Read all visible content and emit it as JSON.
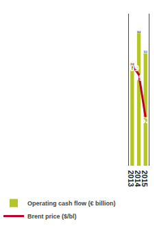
{
  "chart_data": {
    "type": "bar",
    "categories": [
      "2013",
      "2014",
      "2015"
    ],
    "series": [
      {
        "name": "Operating cash flow (€ billion)",
        "type": "bar",
        "color": "#b5c427",
        "values": [
          10.9,
          14.4,
          12.2
        ]
      },
      {
        "name": "Brent price ($/bl)",
        "type": "line",
        "color": "#be0027",
        "values": [
          109,
          99,
          53
        ],
        "axis": "y2"
      }
    ],
    "ylim": [
      0,
      16.5
    ],
    "y2lim": [
      0,
      165
    ],
    "data_labels": true,
    "grid": false,
    "legend": "lower left",
    "tick_labels": "x"
  }
}
